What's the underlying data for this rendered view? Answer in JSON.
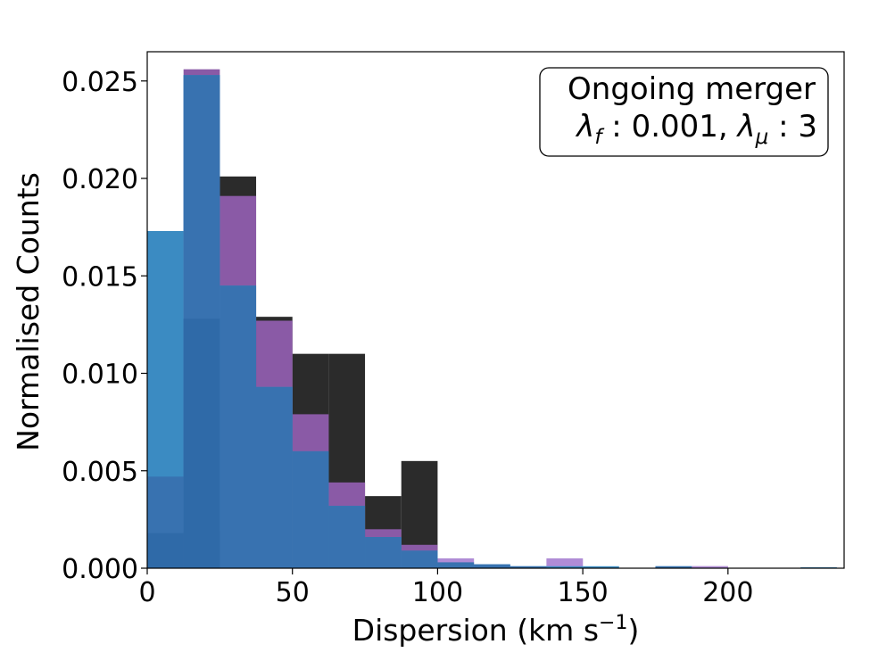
{
  "chart_data": {
    "type": "bar",
    "title": "",
    "xlabel": "Dispersion (km s",
    "xlabel_sup": "−1",
    "xlabel_close": ")",
    "ylabel": "Normalised Counts",
    "xlim": [
      0,
      240
    ],
    "ylim": [
      0,
      0.0265
    ],
    "xticks": [
      0,
      50,
      100,
      150,
      200
    ],
    "xtick_labels": [
      "0",
      "50",
      "100",
      "150",
      "200"
    ],
    "yticks": [
      0,
      0.005,
      0.01,
      0.015,
      0.02,
      0.025
    ],
    "ytick_labels": [
      "0.000",
      "0.005",
      "0.010",
      "0.015",
      "0.020",
      "0.025"
    ],
    "grid": false,
    "legend_position": "top-right",
    "legend_line1": "Ongoing merger",
    "legend_line2": {
      "lf": "λ",
      "lf_sub": "f",
      "mid": " : 0.001, ",
      "lm": "λ",
      "lm_sub": "μ",
      "end": " : 3"
    },
    "series": [
      {
        "color": "#2b2b2b",
        "bars": [
          [
            12.5,
            25,
            0.0019
          ],
          [
            25,
            37.5,
            0.0201
          ],
          [
            37.5,
            50,
            0.0129
          ],
          [
            50,
            62.5,
            0.011
          ],
          [
            62.5,
            75,
            0.011
          ],
          [
            75,
            87.5,
            0.0037
          ],
          [
            87.5,
            100,
            0.0055
          ]
        ]
      },
      {
        "color": "#8a5aa6",
        "bars": [
          [
            12.5,
            25,
            0.0256
          ],
          [
            25,
            37.5,
            0.0191
          ],
          [
            37.5,
            50,
            0.0127
          ],
          [
            50,
            62.5,
            0.0079
          ],
          [
            62.5,
            75,
            0.0044
          ],
          [
            75,
            87.5,
            0.002
          ],
          [
            87.5,
            100,
            0.0012
          ],
          [
            100,
            112.5,
            0.0005
          ],
          [
            137.5,
            150,
            0.0005
          ],
          [
            187.5,
            200,
            0.0001
          ]
        ]
      },
      {
        "color": "#b08cd6",
        "bars": [
          [
            100,
            112.5,
            0.0005
          ],
          [
            137.5,
            150,
            0.0005
          ],
          [
            187.5,
            200,
            0.0001
          ]
        ]
      },
      {
        "color": "#3b8bc2",
        "bars": [
          [
            0,
            12.5,
            0.0173
          ],
          [
            12.5,
            25,
            0.0253
          ],
          [
            25,
            37.5,
            0.0145
          ],
          [
            37.5,
            50,
            0.0093
          ],
          [
            50,
            62.5,
            0.006
          ],
          [
            62.5,
            75,
            0.0032
          ],
          [
            75,
            87.5,
            0.0016
          ],
          [
            87.5,
            100,
            0.0009
          ],
          [
            100,
            112.5,
            0.0003
          ],
          [
            112.5,
            125,
            0.0002
          ],
          [
            125,
            137.5,
            0.0001
          ],
          [
            137.5,
            150,
            0.0001
          ],
          [
            150,
            162.5,
            0.0001
          ],
          [
            175,
            187.5,
            0.0001
          ],
          [
            225,
            237.5,
            5e-05
          ]
        ]
      },
      {
        "color": "#3872b0",
        "bars": [
          [
            0,
            12.5,
            0.0047
          ],
          [
            12.5,
            25,
            0.0253
          ],
          [
            25,
            37.5,
            0.0145
          ],
          [
            37.5,
            50,
            0.0093
          ],
          [
            50,
            62.5,
            0.006
          ],
          [
            62.5,
            75,
            0.0032
          ],
          [
            75,
            87.5,
            0.0016
          ],
          [
            87.5,
            100,
            0.0009
          ],
          [
            100,
            112.5,
            0.0003
          ],
          [
            112.5,
            125,
            0.0002
          ],
          [
            125,
            137.5,
            0.0001
          ],
          [
            175,
            187.5,
            0.0001
          ]
        ]
      },
      {
        "color": "#2f6aa8",
        "bars": [
          [
            0,
            12.5,
            0.0018
          ],
          [
            12.5,
            25,
            0.0128
          ]
        ]
      }
    ]
  }
}
